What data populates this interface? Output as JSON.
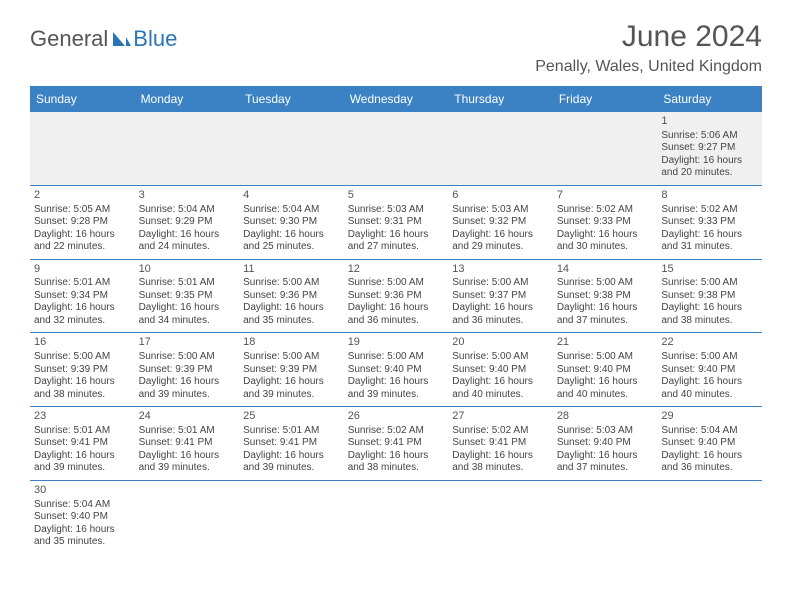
{
  "logo": {
    "part1": "General",
    "part2": "Blue"
  },
  "title": "June 2024",
  "location": "Penally, Wales, United Kingdom",
  "header_bg": "#3b82c4",
  "header_fg": "#ffffff",
  "row_border": "#3b82c4",
  "first_row_bg": "#f0f0f0",
  "day_labels": [
    "Sunday",
    "Monday",
    "Tuesday",
    "Wednesday",
    "Thursday",
    "Friday",
    "Saturday"
  ],
  "weeks": [
    [
      null,
      null,
      null,
      null,
      null,
      null,
      {
        "n": "1",
        "sr": "Sunrise: 5:06 AM",
        "ss": "Sunset: 9:27 PM",
        "d1": "Daylight: 16 hours",
        "d2": "and 20 minutes."
      }
    ],
    [
      {
        "n": "2",
        "sr": "Sunrise: 5:05 AM",
        "ss": "Sunset: 9:28 PM",
        "d1": "Daylight: 16 hours",
        "d2": "and 22 minutes."
      },
      {
        "n": "3",
        "sr": "Sunrise: 5:04 AM",
        "ss": "Sunset: 9:29 PM",
        "d1": "Daylight: 16 hours",
        "d2": "and 24 minutes."
      },
      {
        "n": "4",
        "sr": "Sunrise: 5:04 AM",
        "ss": "Sunset: 9:30 PM",
        "d1": "Daylight: 16 hours",
        "d2": "and 25 minutes."
      },
      {
        "n": "5",
        "sr": "Sunrise: 5:03 AM",
        "ss": "Sunset: 9:31 PM",
        "d1": "Daylight: 16 hours",
        "d2": "and 27 minutes."
      },
      {
        "n": "6",
        "sr": "Sunrise: 5:03 AM",
        "ss": "Sunset: 9:32 PM",
        "d1": "Daylight: 16 hours",
        "d2": "and 29 minutes."
      },
      {
        "n": "7",
        "sr": "Sunrise: 5:02 AM",
        "ss": "Sunset: 9:33 PM",
        "d1": "Daylight: 16 hours",
        "d2": "and 30 minutes."
      },
      {
        "n": "8",
        "sr": "Sunrise: 5:02 AM",
        "ss": "Sunset: 9:33 PM",
        "d1": "Daylight: 16 hours",
        "d2": "and 31 minutes."
      }
    ],
    [
      {
        "n": "9",
        "sr": "Sunrise: 5:01 AM",
        "ss": "Sunset: 9:34 PM",
        "d1": "Daylight: 16 hours",
        "d2": "and 32 minutes."
      },
      {
        "n": "10",
        "sr": "Sunrise: 5:01 AM",
        "ss": "Sunset: 9:35 PM",
        "d1": "Daylight: 16 hours",
        "d2": "and 34 minutes."
      },
      {
        "n": "11",
        "sr": "Sunrise: 5:00 AM",
        "ss": "Sunset: 9:36 PM",
        "d1": "Daylight: 16 hours",
        "d2": "and 35 minutes."
      },
      {
        "n": "12",
        "sr": "Sunrise: 5:00 AM",
        "ss": "Sunset: 9:36 PM",
        "d1": "Daylight: 16 hours",
        "d2": "and 36 minutes."
      },
      {
        "n": "13",
        "sr": "Sunrise: 5:00 AM",
        "ss": "Sunset: 9:37 PM",
        "d1": "Daylight: 16 hours",
        "d2": "and 36 minutes."
      },
      {
        "n": "14",
        "sr": "Sunrise: 5:00 AM",
        "ss": "Sunset: 9:38 PM",
        "d1": "Daylight: 16 hours",
        "d2": "and 37 minutes."
      },
      {
        "n": "15",
        "sr": "Sunrise: 5:00 AM",
        "ss": "Sunset: 9:38 PM",
        "d1": "Daylight: 16 hours",
        "d2": "and 38 minutes."
      }
    ],
    [
      {
        "n": "16",
        "sr": "Sunrise: 5:00 AM",
        "ss": "Sunset: 9:39 PM",
        "d1": "Daylight: 16 hours",
        "d2": "and 38 minutes."
      },
      {
        "n": "17",
        "sr": "Sunrise: 5:00 AM",
        "ss": "Sunset: 9:39 PM",
        "d1": "Daylight: 16 hours",
        "d2": "and 39 minutes."
      },
      {
        "n": "18",
        "sr": "Sunrise: 5:00 AM",
        "ss": "Sunset: 9:39 PM",
        "d1": "Daylight: 16 hours",
        "d2": "and 39 minutes."
      },
      {
        "n": "19",
        "sr": "Sunrise: 5:00 AM",
        "ss": "Sunset: 9:40 PM",
        "d1": "Daylight: 16 hours",
        "d2": "and 39 minutes."
      },
      {
        "n": "20",
        "sr": "Sunrise: 5:00 AM",
        "ss": "Sunset: 9:40 PM",
        "d1": "Daylight: 16 hours",
        "d2": "and 40 minutes."
      },
      {
        "n": "21",
        "sr": "Sunrise: 5:00 AM",
        "ss": "Sunset: 9:40 PM",
        "d1": "Daylight: 16 hours",
        "d2": "and 40 minutes."
      },
      {
        "n": "22",
        "sr": "Sunrise: 5:00 AM",
        "ss": "Sunset: 9:40 PM",
        "d1": "Daylight: 16 hours",
        "d2": "and 40 minutes."
      }
    ],
    [
      {
        "n": "23",
        "sr": "Sunrise: 5:01 AM",
        "ss": "Sunset: 9:41 PM",
        "d1": "Daylight: 16 hours",
        "d2": "and 39 minutes."
      },
      {
        "n": "24",
        "sr": "Sunrise: 5:01 AM",
        "ss": "Sunset: 9:41 PM",
        "d1": "Daylight: 16 hours",
        "d2": "and 39 minutes."
      },
      {
        "n": "25",
        "sr": "Sunrise: 5:01 AM",
        "ss": "Sunset: 9:41 PM",
        "d1": "Daylight: 16 hours",
        "d2": "and 39 minutes."
      },
      {
        "n": "26",
        "sr": "Sunrise: 5:02 AM",
        "ss": "Sunset: 9:41 PM",
        "d1": "Daylight: 16 hours",
        "d2": "and 38 minutes."
      },
      {
        "n": "27",
        "sr": "Sunrise: 5:02 AM",
        "ss": "Sunset: 9:41 PM",
        "d1": "Daylight: 16 hours",
        "d2": "and 38 minutes."
      },
      {
        "n": "28",
        "sr": "Sunrise: 5:03 AM",
        "ss": "Sunset: 9:40 PM",
        "d1": "Daylight: 16 hours",
        "d2": "and 37 minutes."
      },
      {
        "n": "29",
        "sr": "Sunrise: 5:04 AM",
        "ss": "Sunset: 9:40 PM",
        "d1": "Daylight: 16 hours",
        "d2": "and 36 minutes."
      }
    ],
    [
      {
        "n": "30",
        "sr": "Sunrise: 5:04 AM",
        "ss": "Sunset: 9:40 PM",
        "d1": "Daylight: 16 hours",
        "d2": "and 35 minutes."
      },
      null,
      null,
      null,
      null,
      null,
      null
    ]
  ]
}
